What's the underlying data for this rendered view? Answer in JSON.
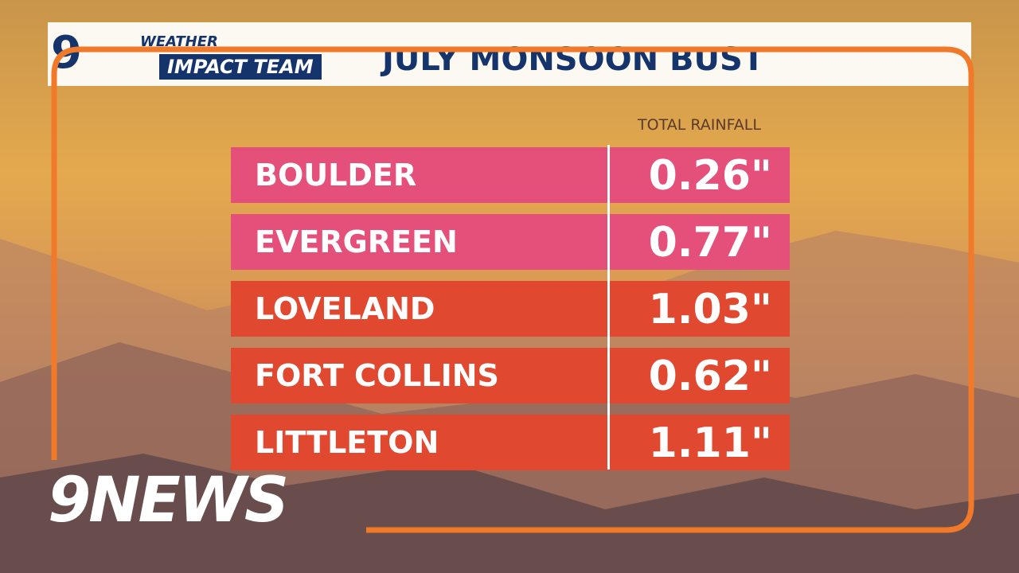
{
  "header": {
    "logo": {
      "mark": "9",
      "line1": "WEATHER",
      "line2": "IMPACT TEAM"
    },
    "title": "JULY MONSOON BUST"
  },
  "table": {
    "column_header": "TOTAL RAINFALL",
    "rows": [
      [
        "BOULDER",
        "0.26\""
      ],
      [
        "EVERGREEN",
        "0.77\""
      ],
      [
        "LOVELAND",
        "1.03\""
      ],
      [
        "FORT COLLINS",
        "0.62\""
      ],
      [
        "LITTLETON",
        "1.11\""
      ]
    ]
  },
  "footer": {
    "brand": "9NEWS"
  }
}
